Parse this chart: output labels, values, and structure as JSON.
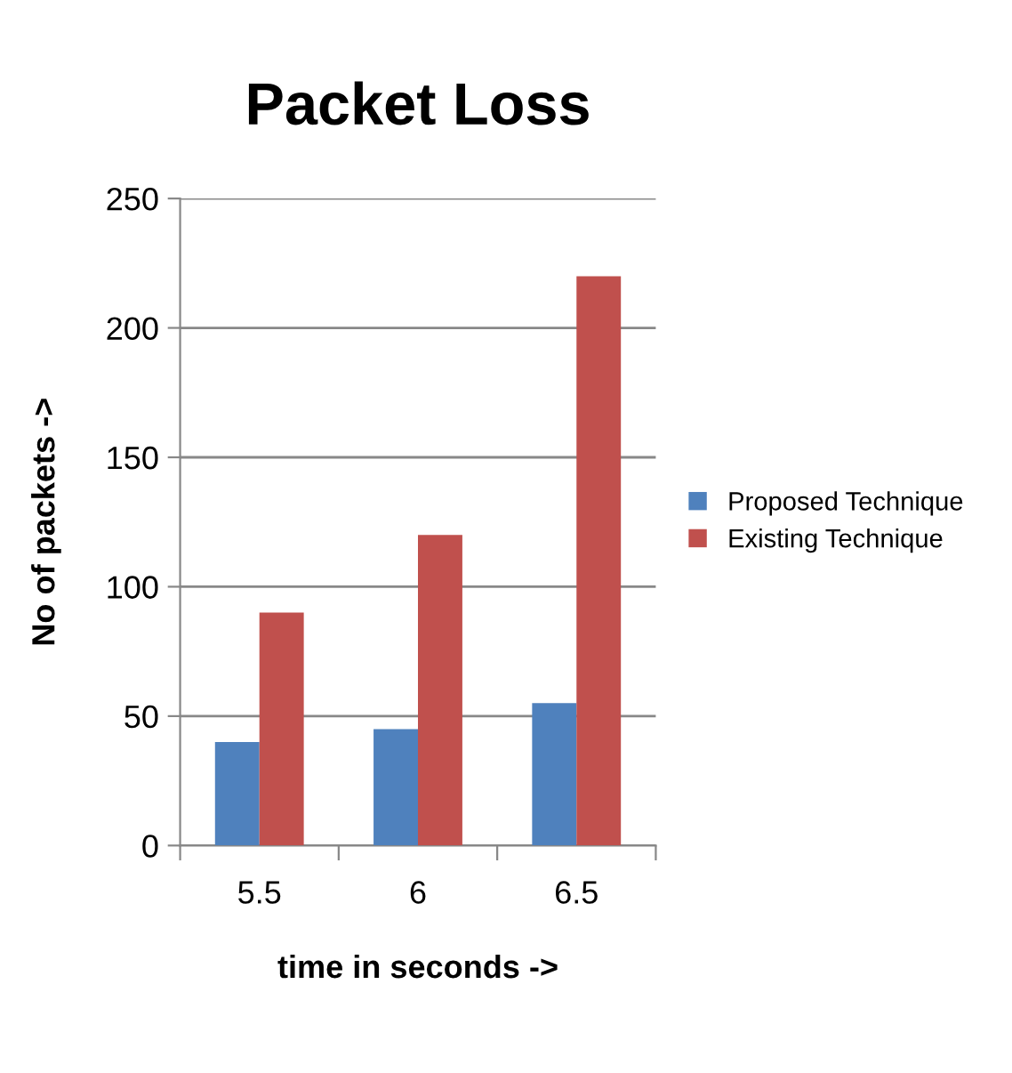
{
  "chart_data": {
    "type": "bar",
    "title": "Packet Loss",
    "xlabel": "time in seconds ->",
    "ylabel": "No of packets ->",
    "categories": [
      "5.5",
      "6",
      "6.5"
    ],
    "series": [
      {
        "name": "Proposed Technique",
        "color": "#4f81bd",
        "values": [
          40,
          45,
          55
        ]
      },
      {
        "name": "Existing Technique",
        "color": "#c0504d",
        "values": [
          90,
          120,
          220
        ]
      }
    ],
    "ylim": [
      0,
      250
    ],
    "yticks": [
      0,
      50,
      100,
      150,
      200,
      250
    ],
    "grid": "y",
    "legend": "right"
  }
}
